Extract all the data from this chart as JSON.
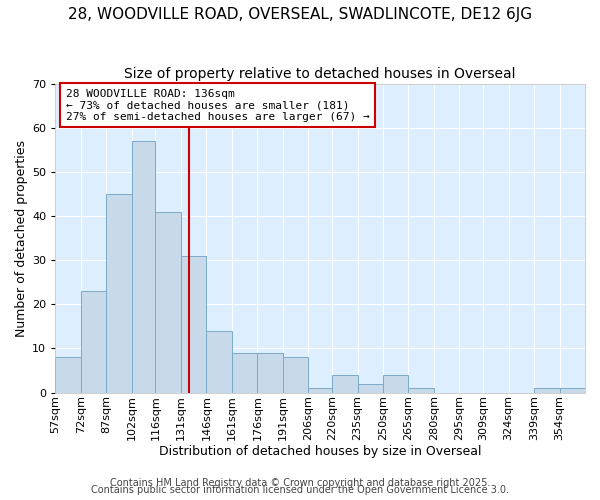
{
  "title1": "28, WOODVILLE ROAD, OVERSEAL, SWADLINCOTE, DE12 6JG",
  "title2": "Size of property relative to detached houses in Overseal",
  "xlabel": "Distribution of detached houses by size in Overseal",
  "ylabel": "Number of detached properties",
  "bin_edges": [
    57,
    72,
    87,
    102,
    116,
    131,
    146,
    161,
    176,
    191,
    206,
    220,
    235,
    250,
    265,
    280,
    295,
    309,
    324,
    339,
    354,
    369
  ],
  "bin_labels": [
    "57sqm",
    "72sqm",
    "87sqm",
    "102sqm",
    "116sqm",
    "131sqm",
    "146sqm",
    "161sqm",
    "176sqm",
    "191sqm",
    "206sqm",
    "220sqm",
    "235sqm",
    "250sqm",
    "265sqm",
    "280sqm",
    "295sqm",
    "309sqm",
    "324sqm",
    "339sqm",
    "354sqm"
  ],
  "counts": [
    8,
    23,
    45,
    57,
    41,
    31,
    14,
    9,
    9,
    8,
    1,
    4,
    2,
    4,
    1,
    0,
    0,
    0,
    0,
    1,
    1
  ],
  "bar_color": "#c8daea",
  "bar_edge_color": "#7aaac8",
  "vline_x": 136,
  "vline_color": "#cc0000",
  "ylim": [
    0,
    70
  ],
  "yticks": [
    0,
    10,
    20,
    30,
    40,
    50,
    60,
    70
  ],
  "annotation_text": "28 WOODVILLE ROAD: 136sqm\n← 73% of detached houses are smaller (181)\n27% of semi-detached houses are larger (67) →",
  "annotation_box_facecolor": "#ffffff",
  "annotation_box_edgecolor": "#cc0000",
  "footer1": "Contains HM Land Registry data © Crown copyright and database right 2025.",
  "footer2": "Contains public sector information licensed under the Open Government Licence 3.0.",
  "fig_facecolor": "#ffffff",
  "axes_facecolor": "#ddeeff",
  "grid_color": "#ffffff",
  "title1_fontsize": 11,
  "title2_fontsize": 10,
  "axis_label_fontsize": 9,
  "tick_fontsize": 8,
  "annotation_fontsize": 8,
  "footer_fontsize": 7
}
